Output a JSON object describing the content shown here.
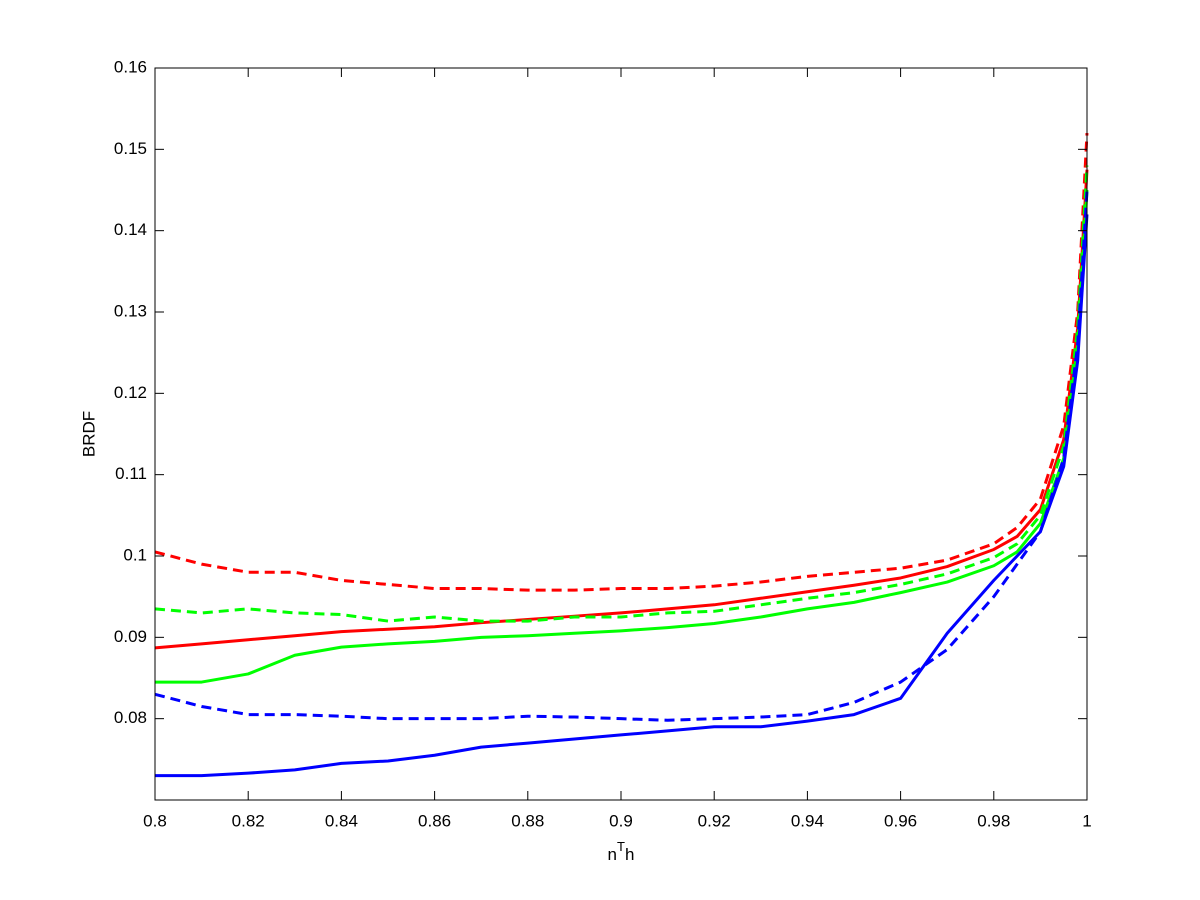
{
  "chart_data": {
    "type": "line",
    "xlabel": [
      "n",
      "T",
      "h"
    ],
    "ylabel": "BRDF",
    "xlim": [
      0.8,
      1
    ],
    "ylim": [
      0.07,
      0.16
    ],
    "xticks": [
      0.8,
      0.82,
      0.84,
      0.86,
      0.88,
      0.9,
      0.92,
      0.94,
      0.96,
      0.98,
      1
    ],
    "yticks": [
      0.08,
      0.09,
      0.1,
      0.11,
      0.12,
      0.13,
      0.14,
      0.15,
      0.16
    ],
    "x": [
      0.8,
      0.81,
      0.82,
      0.83,
      0.84,
      0.85,
      0.86,
      0.87,
      0.88,
      0.89,
      0.9,
      0.91,
      0.92,
      0.93,
      0.94,
      0.95,
      0.96,
      0.97,
      0.98,
      0.985,
      0.99,
      0.995,
      0.998,
      1
    ],
    "series": [
      {
        "color": "#ff0000",
        "dash": false,
        "values": [
          0.0887,
          0.0892,
          0.0897,
          0.0902,
          0.0907,
          0.091,
          0.0913,
          0.0918,
          0.0922,
          0.0926,
          0.093,
          0.0935,
          0.094,
          0.0948,
          0.0956,
          0.0964,
          0.0973,
          0.0987,
          0.1008,
          0.1024,
          0.1057,
          0.1143,
          0.128,
          0.1475
        ]
      },
      {
        "color": "#ff0000",
        "dash": true,
        "values": [
          0.1005,
          0.099,
          0.098,
          0.098,
          0.097,
          0.0965,
          0.096,
          0.096,
          0.0958,
          0.0958,
          0.096,
          0.096,
          0.0963,
          0.0968,
          0.0975,
          0.098,
          0.0985,
          0.0995,
          0.1015,
          0.1035,
          0.107,
          0.116,
          0.13,
          0.152
        ]
      },
      {
        "color": "#00ff00",
        "dash": false,
        "values": [
          0.0845,
          0.0845,
          0.0855,
          0.0878,
          0.0888,
          0.0892,
          0.0895,
          0.09,
          0.0902,
          0.0905,
          0.0908,
          0.0912,
          0.0917,
          0.0925,
          0.0935,
          0.0943,
          0.0955,
          0.0968,
          0.0988,
          0.1005,
          0.104,
          0.112,
          0.126,
          0.145
        ]
      },
      {
        "color": "#00ff00",
        "dash": true,
        "values": [
          0.0935,
          0.093,
          0.0935,
          0.093,
          0.0928,
          0.092,
          0.0925,
          0.092,
          0.092,
          0.0925,
          0.0925,
          0.093,
          0.0932,
          0.094,
          0.0948,
          0.0955,
          0.0965,
          0.0978,
          0.0998,
          0.1015,
          0.105,
          0.1135,
          0.128,
          0.148
        ]
      },
      {
        "color": "#0000ff",
        "dash": false,
        "values": [
          0.073,
          0.073,
          0.0733,
          0.0737,
          0.0745,
          0.0748,
          0.0755,
          0.0765,
          0.077,
          0.0775,
          0.078,
          0.0785,
          0.079,
          0.079,
          0.0797,
          0.0805,
          0.0825,
          0.0905,
          0.097,
          0.1,
          0.103,
          0.111,
          0.124,
          0.142
        ]
      },
      {
        "color": "#0000ff",
        "dash": true,
        "values": [
          0.083,
          0.0815,
          0.0805,
          0.0805,
          0.0803,
          0.08,
          0.08,
          0.08,
          0.0803,
          0.0802,
          0.08,
          0.0798,
          0.08,
          0.0802,
          0.0805,
          0.082,
          0.0845,
          0.0885,
          0.095,
          0.099,
          0.103,
          0.112,
          0.126,
          0.145
        ]
      }
    ]
  }
}
